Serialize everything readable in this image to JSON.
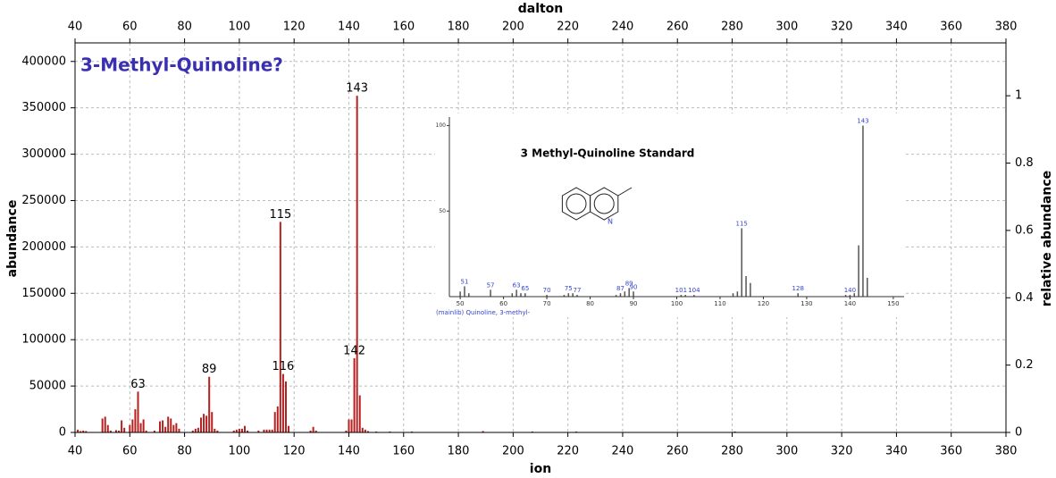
{
  "chart_data": [
    {
      "type": "bar",
      "title": "3-Methyl-Quinoline?",
      "x_label": "ion",
      "x2_label": "dalton",
      "y_label": "abundance",
      "y2_label": "relative abundance",
      "x": [
        41,
        42,
        43,
        44,
        50,
        51,
        52,
        53,
        55,
        56,
        57,
        58,
        60,
        61,
        62,
        63,
        64,
        65,
        66,
        69,
        71,
        72,
        73,
        74,
        75,
        76,
        77,
        78,
        83,
        84,
        85,
        86,
        87,
        88,
        89,
        90,
        91,
        92,
        98,
        99,
        100,
        101,
        102,
        103,
        107,
        109,
        110,
        111,
        112,
        113,
        114,
        115,
        116,
        117,
        118,
        126,
        127,
        128,
        139,
        140,
        141,
        142,
        143,
        144,
        145,
        146,
        147,
        150,
        155,
        163,
        189,
        207,
        223,
        281
      ],
      "values": [
        3000,
        1500,
        2000,
        1500,
        15000,
        17000,
        8000,
        2000,
        2500,
        2000,
        13000,
        5000,
        8000,
        14000,
        25000,
        44000,
        10000,
        14000,
        2000,
        2000,
        12000,
        13000,
        6000,
        17000,
        15000,
        8000,
        10000,
        4000,
        2000,
        4000,
        5000,
        16000,
        20000,
        18000,
        60000,
        22000,
        4000,
        2000,
        2000,
        3000,
        4000,
        4000,
        7000,
        2000,
        2000,
        3000,
        3000,
        3000,
        3000,
        22000,
        28000,
        227000,
        63000,
        55000,
        7000,
        2000,
        6000,
        2000,
        2000,
        14000,
        14000,
        80000,
        363000,
        40000,
        5000,
        3000,
        1500,
        1000,
        1000,
        1000,
        1500,
        1000,
        1000,
        1000
      ],
      "color": "#b5211f",
      "peak_labels": [
        63,
        89,
        115,
        116,
        142,
        143
      ],
      "xlim": [
        40,
        380
      ],
      "xticks": [
        40,
        60,
        80,
        100,
        120,
        140,
        160,
        180,
        200,
        220,
        240,
        260,
        280,
        300,
        320,
        340,
        360,
        380
      ],
      "ylim": [
        0,
        420000
      ],
      "yticks": [
        0,
        50000,
        100000,
        150000,
        200000,
        250000,
        300000,
        350000,
        400000
      ],
      "y2lim": [
        0,
        1.157
      ],
      "y2ticks": [
        0,
        0.2,
        0.4,
        0.6,
        0.8,
        1
      ],
      "grid": true
    },
    {
      "type": "bar",
      "title": "3 Methyl-Quinoline Standard",
      "caption": "(mainlib) Quinoline, 3-methyl-",
      "structure_atom": "N",
      "x": [
        50,
        51,
        52,
        57,
        62,
        63,
        64,
        65,
        70,
        74,
        75,
        76,
        77,
        86,
        87,
        88,
        89,
        90,
        101,
        102,
        104,
        113,
        114,
        115,
        116,
        117,
        128,
        139,
        140,
        141,
        142,
        143,
        144
      ],
      "values": [
        3,
        6,
        2,
        4,
        2,
        4,
        2,
        2,
        1,
        1,
        2,
        2,
        1,
        1,
        2,
        3,
        5,
        3,
        1,
        1,
        1,
        2,
        3,
        40,
        12,
        8,
        2,
        1,
        1,
        2,
        30,
        100,
        11
      ],
      "color": "#555555",
      "peak_labels": [
        51,
        57,
        63,
        65,
        70,
        75,
        77,
        87,
        89,
        90,
        101,
        104,
        115,
        128,
        140,
        143
      ],
      "xlim": [
        47.5,
        152.5
      ],
      "xticks": [
        50,
        60,
        70,
        80,
        90,
        100,
        110,
        120,
        130,
        140,
        150
      ],
      "ylim": [
        0,
        105
      ],
      "yticks": [
        50,
        100
      ]
    }
  ]
}
